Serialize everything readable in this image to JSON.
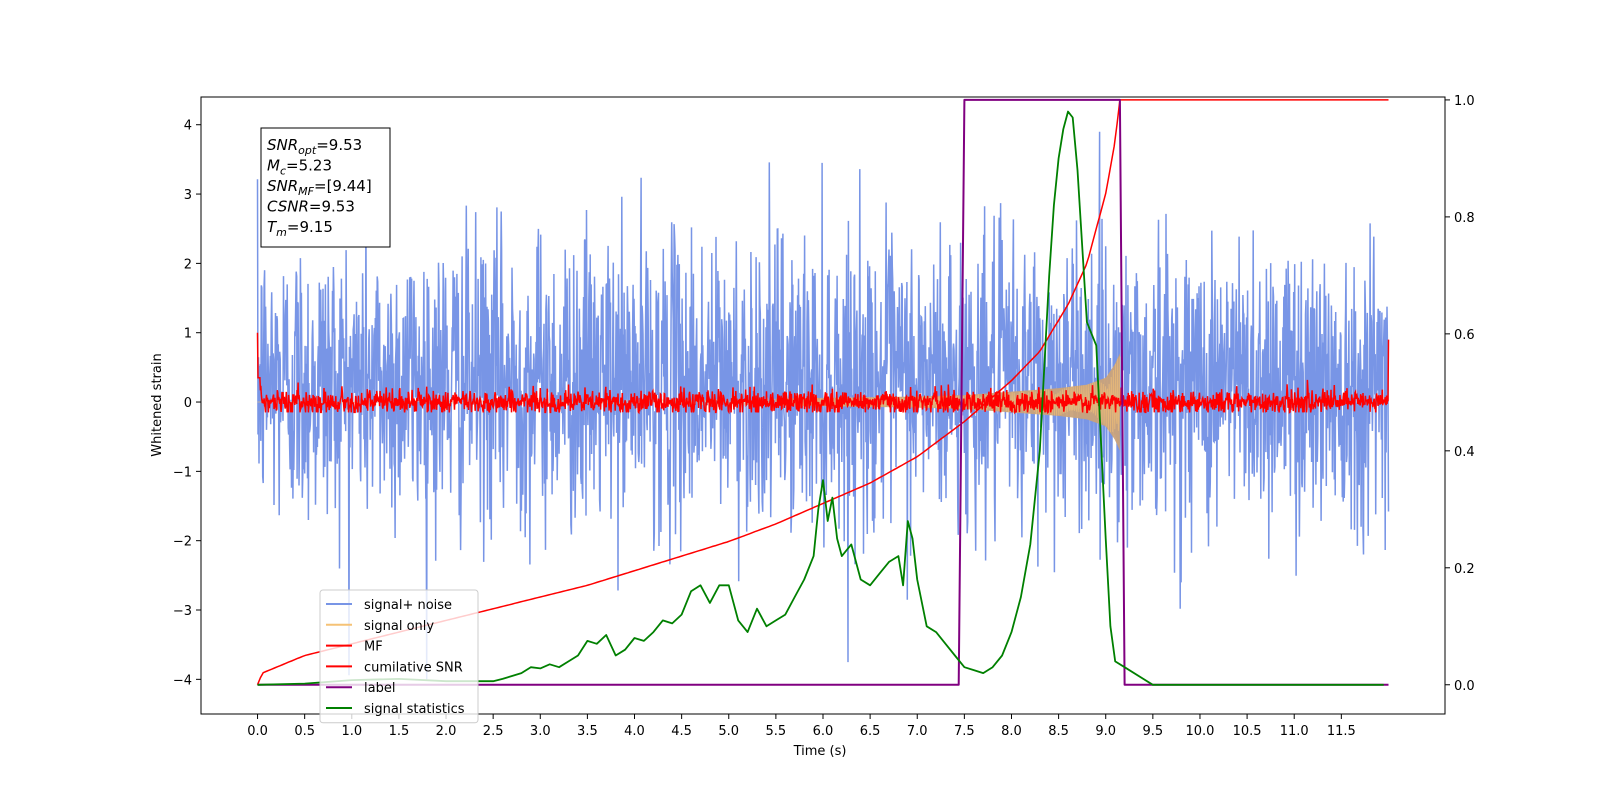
{
  "chart_data": {
    "type": "line",
    "title": "",
    "xlabel": "Time (s)",
    "ylabel": "Whitened strain",
    "xlim": [
      -0.6,
      12.6
    ],
    "xticks": [
      0.0,
      0.5,
      1.0,
      1.5,
      2.0,
      2.5,
      3.0,
      3.5,
      4.0,
      4.5,
      5.0,
      5.5,
      6.0,
      6.5,
      7.0,
      7.5,
      8.0,
      8.5,
      9.0,
      9.5,
      10.0,
      10.5,
      11.0,
      11.5
    ],
    "xtick_labels": [
      "0.0",
      "0.5",
      "1.0",
      "1.5",
      "2.0",
      "2.5",
      "3.0",
      "3.5",
      "4.0",
      "4.5",
      "5.0",
      "5.5",
      "6.0",
      "6.5",
      "7.0",
      "7.5",
      "8.0",
      "8.5",
      "9.0",
      "9.5",
      "10.0",
      "10.5",
      "11.0",
      "11.5"
    ],
    "ylim_left": [
      -4.5,
      4.4
    ],
    "yticks_left": [
      -4,
      -3,
      -2,
      -1,
      0,
      1,
      2,
      3,
      4
    ],
    "ytick_labels_left": [
      "−4",
      "−3",
      "−2",
      "−1",
      "0",
      "1",
      "2",
      "3",
      "4"
    ],
    "ylim_right": [
      -0.05,
      1.005
    ],
    "yticks_right": [
      0.0,
      0.2,
      0.4,
      0.6,
      0.8,
      1.0
    ],
    "ytick_labels_right": [
      "0.0",
      "0.2",
      "0.4",
      "0.6",
      "0.8",
      "1.0"
    ],
    "grid": false,
    "legend_position": "lower-left",
    "stats_box": {
      "lines": [
        {
          "main": "SNR",
          "sub": "opt",
          "rest": "=9.53"
        },
        {
          "main": "M",
          "sub": "c",
          "rest": "=5.23"
        },
        {
          "main": "SNR",
          "sub": "MF",
          "rest": "=[9.44]"
        },
        {
          "main": "CSNR",
          "sub": "",
          "rest": "=9.53"
        },
        {
          "main": "T",
          "sub": "m",
          "rest": "=9.15"
        }
      ]
    },
    "series": [
      {
        "name": "signal+ noise",
        "color": "#7895e6",
        "axis": "left",
        "description_kind": "noise",
        "t_range": [
          0.0,
          12.0
        ],
        "amplitude_std": 1.0,
        "offset": 0.3,
        "typical_max": 3.9,
        "typical_min": -4.0
      },
      {
        "name": "signal only",
        "color": "#f5c276",
        "axis": "left",
        "description_kind": "chirp",
        "t_range": [
          0.0,
          9.15
        ],
        "envelope": {
          "t": [
            0,
            3,
            5,
            6,
            7,
            7.5,
            8,
            8.5,
            8.8,
            9.0,
            9.1,
            9.15
          ],
          "a": [
            0.0,
            0.02,
            0.04,
            0.06,
            0.08,
            0.1,
            0.15,
            0.2,
            0.25,
            0.35,
            0.55,
            0.7
          ]
        }
      },
      {
        "name": "MF",
        "color": "#ff0000",
        "axis": "left",
        "description_kind": "mf",
        "t_range": [
          0.0,
          12.0
        ],
        "amplitude": 0.11,
        "edge_value": 1.0
      },
      {
        "name": "cumilative SNR",
        "color": "#ff0000",
        "axis": "right",
        "x": [
          0.0,
          0.05,
          0.2,
          0.5,
          1.0,
          1.5,
          2.0,
          2.5,
          3.0,
          3.5,
          4.0,
          4.5,
          5.0,
          5.5,
          6.0,
          6.5,
          7.0,
          7.5,
          8.0,
          8.3,
          8.6,
          8.8,
          9.0,
          9.1,
          9.15,
          12.0
        ],
        "y": [
          0.0,
          0.02,
          0.03,
          0.05,
          0.07,
          0.09,
          0.11,
          0.13,
          0.15,
          0.17,
          0.195,
          0.22,
          0.245,
          0.275,
          0.31,
          0.345,
          0.39,
          0.45,
          0.52,
          0.57,
          0.65,
          0.72,
          0.84,
          0.93,
          1.0,
          1.0
        ]
      },
      {
        "name": "label",
        "color": "#800080",
        "axis": "right",
        "x": [
          0.0,
          7.44,
          7.5,
          9.15,
          9.2,
          12.0
        ],
        "y": [
          0.0,
          0.0,
          1.0,
          1.0,
          0.0,
          0.0
        ]
      },
      {
        "name": "signal statistics",
        "color": "#008000",
        "axis": "right",
        "x": [
          0.0,
          0.5,
          1.0,
          1.5,
          2.0,
          2.5,
          2.6,
          2.7,
          2.8,
          2.9,
          3.0,
          3.1,
          3.2,
          3.3,
          3.4,
          3.5,
          3.6,
          3.7,
          3.8,
          3.9,
          4.0,
          4.1,
          4.2,
          4.3,
          4.4,
          4.5,
          4.6,
          4.7,
          4.8,
          4.9,
          5.0,
          5.1,
          5.2,
          5.3,
          5.4,
          5.5,
          5.6,
          5.7,
          5.8,
          5.9,
          5.95,
          6.0,
          6.05,
          6.1,
          6.15,
          6.2,
          6.3,
          6.4,
          6.5,
          6.6,
          6.7,
          6.8,
          6.85,
          6.9,
          6.95,
          7.0,
          7.1,
          7.2,
          7.3,
          7.4,
          7.5,
          7.6,
          7.7,
          7.8,
          7.9,
          8.0,
          8.1,
          8.2,
          8.3,
          8.4,
          8.45,
          8.5,
          8.55,
          8.6,
          8.65,
          8.7,
          8.8,
          8.9,
          9.0,
          9.05,
          9.1,
          9.2,
          9.5,
          10.0,
          11.0,
          11.95
        ],
        "y": [
          0.0,
          0.002,
          0.008,
          0.01,
          0.006,
          0.006,
          0.01,
          0.015,
          0.02,
          0.03,
          0.028,
          0.035,
          0.03,
          0.04,
          0.05,
          0.075,
          0.07,
          0.085,
          0.05,
          0.06,
          0.08,
          0.075,
          0.09,
          0.11,
          0.105,
          0.12,
          0.16,
          0.17,
          0.14,
          0.17,
          0.17,
          0.11,
          0.09,
          0.13,
          0.1,
          0.11,
          0.12,
          0.15,
          0.18,
          0.22,
          0.3,
          0.35,
          0.28,
          0.32,
          0.25,
          0.22,
          0.24,
          0.18,
          0.17,
          0.19,
          0.21,
          0.22,
          0.17,
          0.28,
          0.25,
          0.18,
          0.1,
          0.09,
          0.07,
          0.05,
          0.03,
          0.025,
          0.02,
          0.03,
          0.05,
          0.09,
          0.15,
          0.24,
          0.4,
          0.7,
          0.82,
          0.9,
          0.95,
          0.98,
          0.97,
          0.88,
          0.62,
          0.58,
          0.25,
          0.1,
          0.04,
          0.03,
          0.0,
          0.0,
          0.0,
          0.0
        ]
      }
    ]
  }
}
